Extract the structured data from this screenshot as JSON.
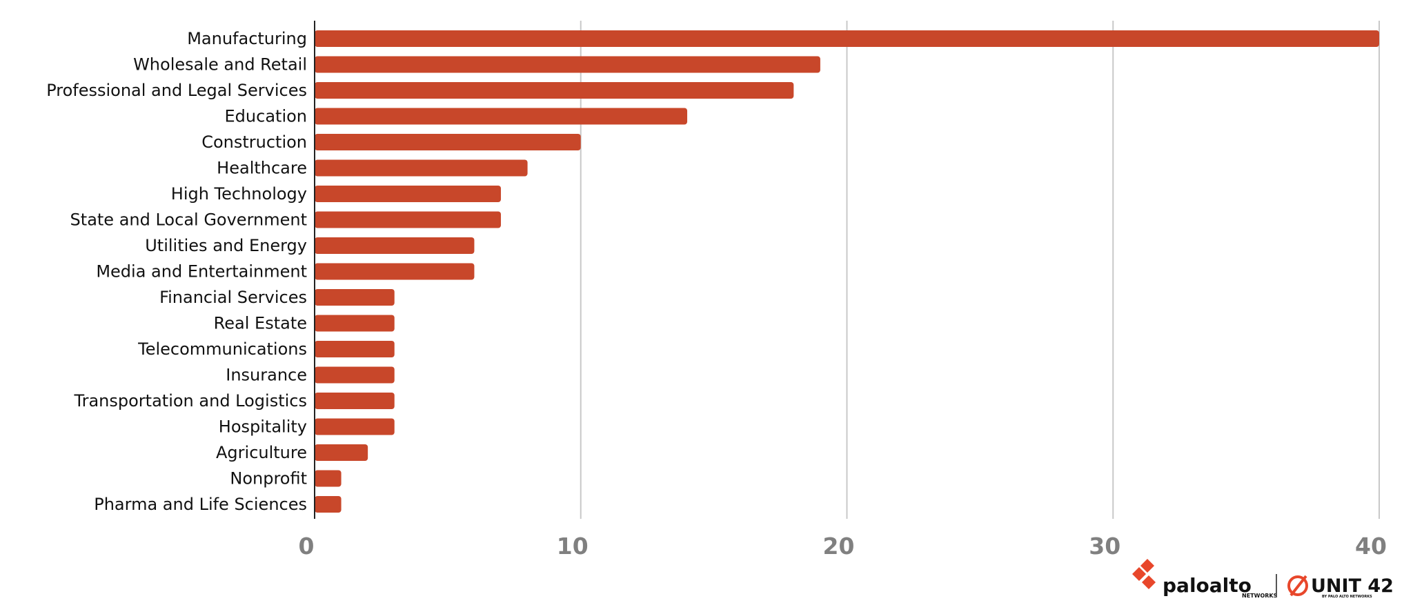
{
  "chart_data": {
    "type": "bar",
    "orientation": "horizontal",
    "categories": [
      "Manufacturing",
      "Wholesale and Retail",
      "Professional and Legal Services",
      "Education",
      "Construction",
      "Healthcare",
      "High Technology",
      "State and Local Government",
      "Utilities and Energy",
      "Media and Entertainment",
      "Financial Services",
      "Real Estate",
      "Telecommunications",
      "Insurance",
      "Transportation and Logistics",
      "Hospitality",
      "Agriculture",
      "Nonprofit",
      "Pharma and Life Sciences"
    ],
    "values": [
      40,
      19,
      18,
      14,
      10,
      8,
      7,
      7,
      6,
      6,
      3,
      3,
      3,
      3,
      3,
      3,
      2,
      1,
      1
    ],
    "xlim": [
      0,
      40
    ],
    "xticks": [
      0,
      10,
      20,
      30,
      40
    ],
    "title": "",
    "xlabel": "",
    "ylabel": "",
    "grid": "vertical",
    "bar_color": "#C8472A",
    "grid_color": "#C8C8C8",
    "axis_color": "#222222",
    "tick_label_color": "#808080"
  },
  "logos": {
    "paloalto": {
      "name": "paloalto",
      "sub": "NETWORKS",
      "icon": "paloalto-logo-icon",
      "accent": "#E8472B"
    },
    "unit42": {
      "name": "UNIT 42",
      "sub": "BY PALO ALTO NETWORKS",
      "icon": "unit42-logo-icon",
      "accent": "#E8472B"
    }
  }
}
